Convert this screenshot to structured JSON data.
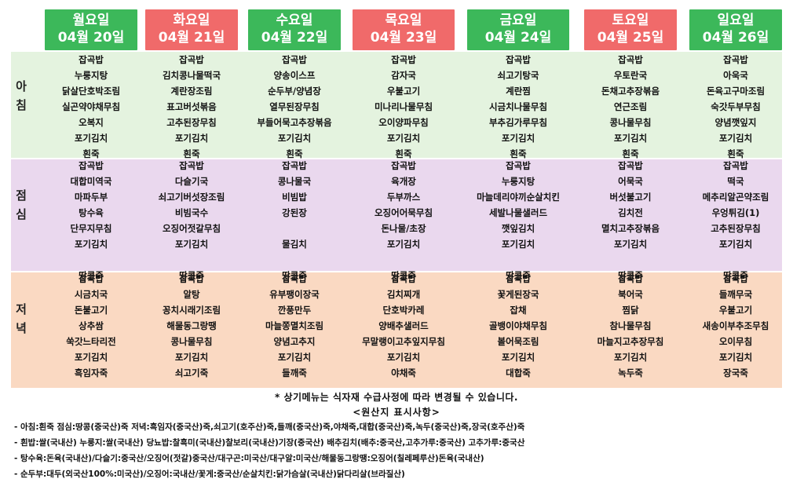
{
  "days": [
    {
      "name": "월요일",
      "date": "04월 20일"
    },
    {
      "name": "화요일",
      "date": "04월 21일"
    },
    {
      "name": "수요일",
      "date": "04월 22일"
    },
    {
      "name": "목요일",
      "date": "04월 23일"
    },
    {
      "name": "금요일",
      "date": "04월 24일"
    },
    {
      "name": "토요일",
      "date": "04월 25일"
    },
    {
      "name": "일요일",
      "date": "04월 26일"
    }
  ],
  "colors": {
    "weekday_header": "#3cb85a",
    "highlight_header": "#f06a6a",
    "breakfast_bg": "#e4f3df",
    "lunch_bg": "#ead8ee",
    "dinner_bg": "#fad9c2"
  },
  "meals": {
    "breakfast": {
      "label": [
        "아",
        "침"
      ]
    },
    "lunch": {
      "label": [
        "점",
        "심"
      ]
    },
    "dinner": {
      "label": [
        "저",
        "녁"
      ]
    }
  },
  "menu": {
    "breakfast": [
      [
        "잡곡밥",
        "누룽지탕",
        "닭살단호박조림",
        "실곤약야채무침",
        "오복지",
        "포기김치",
        "흰죽"
      ],
      [
        "잡곡밥",
        "김치콩나물떡국",
        "계란장조림",
        "표고버섯볶음",
        "고추된장무침",
        "포기김치",
        "흰죽"
      ],
      [
        "잡곡밥",
        "양송이스프",
        "순두부/양념장",
        "열무된장무침",
        "부들어묵고추장볶음",
        "포기김치",
        "흰죽"
      ],
      [
        "잡곡밥",
        "감자국",
        "우불고기",
        "미나리나물무침",
        "오이양파무침",
        "포기김치",
        "흰죽"
      ],
      [
        "잡곡밥",
        "쇠고기탕국",
        "계란찜",
        "시금치나물무침",
        "부추김가루무침",
        "포기김치",
        "흰죽"
      ],
      [
        "잡곡밥",
        "우토란국",
        "돈채고추장볶음",
        "연근조림",
        "콩나물무침",
        "포기김치",
        "흰죽"
      ],
      [
        "잡곡밥",
        "아욱국",
        "돈육고구마조림",
        "숙갓두부무침",
        "양념깻잎지",
        "포기김치",
        "흰죽"
      ]
    ],
    "lunch": [
      [
        "잡곡밥",
        "대합미역국",
        "마파두부",
        "탕수육",
        "단무지무침",
        "포기김치",
        "",
        "땅콩죽"
      ],
      [
        "잡곡밥",
        "다슬기국",
        "쇠고기버섯장조림",
        "비빔국수",
        "오징어젓갈무침",
        "포기김치",
        "",
        "땅콩죽"
      ],
      [
        "잡곡밥",
        "콩나물국",
        "비빔밥",
        "강된장",
        "",
        "물김치",
        "",
        "땅콩죽"
      ],
      [
        "잡곡밥",
        "육개장",
        "두부까스",
        "오징어어묵무침",
        "돈나물/초장",
        "포기김치",
        "",
        "땅콩죽"
      ],
      [
        "잡곡밥",
        "누룽지탕",
        "마늘데리야끼순살치킨",
        "세발나물샐러드",
        "깻잎김치",
        "포기김치",
        "",
        "땅콩죽"
      ],
      [
        "잡곡밥",
        "어묵국",
        "버섯불고기",
        "김치전",
        "멸치고추장볶음",
        "포기김치",
        "",
        "땅콩죽"
      ],
      [
        "잡곡밥",
        "떡국",
        "메추리알곤약조림",
        "우엉튀김(1)",
        "고추된장무침",
        "포기김치",
        "",
        "땅콩죽"
      ]
    ],
    "dinner": [
      [
        "잡곡밥",
        "시금치국",
        "돈불고기",
        "상추쌈",
        "쑥갓느타리전",
        "포기김치",
        "흑임자죽"
      ],
      [
        "잡곡밥",
        "알탕",
        "꽁치시래기조림",
        "해물동그랑땡",
        "콩나물무침",
        "포기김치",
        "쇠고기죽"
      ],
      [
        "잡곡밥",
        "유부팽이장국",
        "깐풍만두",
        "마늘쫑멸치조림",
        "양념고추지",
        "포기김치",
        "들깨죽"
      ],
      [
        "잡곡밥",
        "김치찌개",
        "단호박카레",
        "양배추샐러드",
        "무말랭이고추잎지무침",
        "포기김치",
        "야채죽"
      ],
      [
        "잡곡밥",
        "꽃게된장국",
        "잡채",
        "골뱅이야채무침",
        "볼어묵조림",
        "포기김치",
        "대합죽"
      ],
      [
        "잡곡밥",
        "북어국",
        "찜닭",
        "참나물무침",
        "마늘지고추장무침",
        "포기김치",
        "녹두죽"
      ],
      [
        "잡곡밥",
        "들깨무국",
        "우불고기",
        "새송이부추조무침",
        "오이무침",
        "포기김치",
        "장국죽"
      ]
    ]
  },
  "footer": {
    "note": "* 상기메뉴는 식자재 수급사정에 따라 변경될 수 있습니다.",
    "origin_title": "<원산지 표시사항>",
    "origin_lines": [
      "-  아침:흰죽 점심:땅콩(중국산)죽  저녁:흑임자(중국산)죽,쇠고기(호주산)죽,들깨(중국산)죽,야채죽,대합(중국산)죽,녹두(중국산)죽,장국(호주산)죽",
      "-  흰밥:쌀(국내산) 누룽지:쌀(국내산)  당뇨밥:찰흑미(국내산)찰보리(국내산)기장(중국산)  배추김치(배추:중국산,고추가루:중국산)  고추가루:중국산",
      "-  탕수육:돈육(국내산)/다슬기:중국산/오징어(젓갈)중국산/대구곤:미국산/대구알:미국산/해물동그랑땡:오징어(칠레페루산)돈육(국내산)",
      "-  순두부:대두(외국산100%:미국산)/오징어:국내산/꽃게:중국산/순살치킨:닭가슴살(국내산)닭다리살(브라질산)"
    ]
  }
}
